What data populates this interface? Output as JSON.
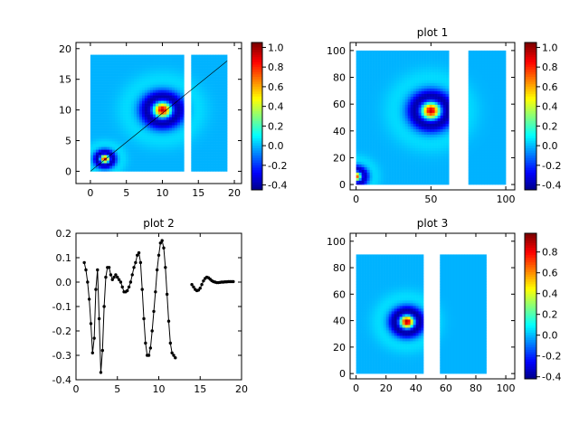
{
  "figure": {
    "colormap": [
      "#00007f",
      "#0000ff",
      "#0080ff",
      "#00ffff",
      "#80ff80",
      "#ffff00",
      "#ff8000",
      "#ff0000",
      "#7f0000"
    ]
  },
  "chart_data": [
    {
      "id": "p0",
      "type": "heatmap",
      "title": "",
      "xlim": [
        -2,
        21
      ],
      "ylim": [
        -2,
        21
      ],
      "xticks": [
        0,
        5,
        10,
        15,
        20
      ],
      "yticks": [
        0,
        5,
        10,
        15,
        20
      ],
      "grid": false,
      "background": 0.0,
      "blocks": [
        {
          "x": [
            0,
            13
          ],
          "y": [
            0,
            19
          ]
        },
        {
          "x": [
            14,
            19
          ],
          "y": [
            0,
            19
          ]
        }
      ],
      "peaks": [
        {
          "x": 10,
          "y": 10,
          "amp": 1.0,
          "sigma": 0.9,
          "ringR": 2.0,
          "ringW": 0.9,
          "ringAmp": 0.45
        },
        {
          "x": 2,
          "y": 2,
          "amp": 1.0,
          "sigma": 0.45,
          "ringR": 1.0,
          "ringW": 0.45,
          "ringAmp": 0.45
        }
      ],
      "line": {
        "x": [
          0,
          19
        ],
        "y": [
          0,
          18
        ]
      },
      "colorbar": {
        "ticks": [
          "1.0",
          "0.8",
          "0.6",
          "0.4",
          "0.2",
          "0.0",
          "-0.2",
          "-0.4"
        ],
        "vmin": -0.45,
        "vmax": 1.05
      }
    },
    {
      "id": "p1",
      "type": "heatmap",
      "title": "plot 1",
      "xlim": [
        -4,
        106
      ],
      "ylim": [
        -4,
        106
      ],
      "xticks": [
        0,
        50,
        100
      ],
      "yticks": [
        0,
        20,
        40,
        60,
        80,
        100
      ],
      "grid": false,
      "background": 0.0,
      "blocks": [
        {
          "x": [
            0,
            62
          ],
          "y": [
            0,
            100
          ]
        },
        {
          "x": [
            75,
            100
          ],
          "y": [
            0,
            100
          ]
        }
      ],
      "peaks": [
        {
          "x": 50,
          "y": 55,
          "amp": 1.0,
          "sigma": 4.5,
          "ringR": 10,
          "ringW": 4.5,
          "ringAmp": 0.45
        },
        {
          "x": 0,
          "y": 6,
          "amp": 0.9,
          "sigma": 2.5,
          "ringR": 5,
          "ringW": 2.5,
          "ringAmp": 0.45
        }
      ],
      "colorbar": {
        "ticks": [
          "1.0",
          "0.8",
          "0.6",
          "0.4",
          "0.2",
          "0.0",
          "-0.2",
          "-0.4"
        ],
        "vmin": -0.45,
        "vmax": 1.05
      }
    },
    {
      "id": "p2",
      "type": "line",
      "title": "plot 2",
      "xlim": [
        0,
        20
      ],
      "ylim": [
        -0.4,
        0.2
      ],
      "xticks": [
        0,
        5,
        10,
        15,
        20
      ],
      "yticks": [
        -0.4,
        -0.3,
        -0.2,
        -0.1,
        0.0,
        0.1,
        0.2
      ],
      "ytick_labels": [
        "-0.4",
        "-0.3",
        "-0.2",
        "-0.1",
        "0.0",
        "0.1",
        "0.2"
      ],
      "grid": false,
      "series": [
        {
          "x": [
            1.0,
            1.2,
            1.4,
            1.6,
            1.8,
            2.0,
            2.2,
            2.4,
            2.6,
            2.8,
            3.0,
            3.2,
            3.4,
            3.6,
            3.8,
            4.0,
            4.2,
            4.4,
            4.6,
            4.8,
            5.0,
            5.2,
            5.4,
            5.6,
            5.8,
            6.0,
            6.2,
            6.4,
            6.6,
            6.8,
            7.0,
            7.2,
            7.4,
            7.6,
            7.8,
            8.0,
            8.2,
            8.4,
            8.6,
            8.8,
            9.0,
            9.2,
            9.4,
            9.6,
            9.8,
            10.0,
            10.2,
            10.4,
            10.6,
            10.8,
            11.0,
            11.2,
            11.4,
            11.6,
            11.8,
            12.0
          ],
          "y": [
            0.08,
            0.05,
            0.0,
            -0.07,
            -0.17,
            -0.29,
            -0.23,
            -0.03,
            0.05,
            -0.15,
            -0.37,
            -0.28,
            -0.1,
            0.02,
            0.06,
            0.06,
            0.03,
            0.01,
            0.02,
            0.03,
            0.02,
            0.01,
            0.0,
            -0.02,
            -0.04,
            -0.04,
            -0.035,
            -0.02,
            0.0,
            0.03,
            0.06,
            0.08,
            0.11,
            0.12,
            0.08,
            -0.03,
            -0.15,
            -0.25,
            -0.3,
            -0.3,
            -0.27,
            -0.2,
            -0.12,
            -0.04,
            0.05,
            0.11,
            0.16,
            0.17,
            0.14,
            0.06,
            -0.05,
            -0.16,
            -0.25,
            -0.29,
            -0.3,
            -0.31
          ]
        },
        {
          "x": [
            14.0,
            14.2,
            14.4,
            14.6,
            14.8,
            15.0,
            15.2,
            15.4,
            15.6,
            15.8,
            16.0,
            16.2,
            16.4,
            16.6,
            16.8,
            17.0,
            17.2,
            17.4,
            17.6,
            17.8,
            18.0,
            18.2,
            18.4,
            18.6,
            18.8,
            19.0
          ],
          "y": [
            -0.01,
            -0.02,
            -0.03,
            -0.035,
            -0.033,
            -0.025,
            -0.01,
            0.005,
            0.015,
            0.02,
            0.018,
            0.012,
            0.006,
            0.002,
            0.0,
            -0.002,
            -0.002,
            -0.001,
            0.0,
            0.0,
            0.001,
            0.001,
            0.002,
            0.002,
            0.002,
            0.002
          ]
        }
      ]
    },
    {
      "id": "p3",
      "type": "heatmap",
      "title": "plot 3",
      "xlim": [
        -4,
        106
      ],
      "ylim": [
        -4,
        106
      ],
      "xticks": [
        0,
        20,
        40,
        60,
        80,
        100
      ],
      "yticks": [
        0,
        20,
        40,
        60,
        80,
        100
      ],
      "grid": false,
      "background": 0.0,
      "blocks": [
        {
          "x": [
            0,
            45
          ],
          "y": [
            0,
            90
          ]
        },
        {
          "x": [
            56,
            87
          ],
          "y": [
            0,
            90
          ]
        }
      ],
      "peaks": [
        {
          "x": 34,
          "y": 39,
          "amp": 1.0,
          "sigma": 3.5,
          "ringR": 7.5,
          "ringW": 3.5,
          "ringAmp": 0.45
        }
      ],
      "colorbar": {
        "ticks": [
          "0.8",
          "0.6",
          "0.4",
          "0.2",
          "0.0",
          "-0.2",
          "-0.4"
        ],
        "vmin": -0.42,
        "vmax": 0.98
      }
    }
  ]
}
